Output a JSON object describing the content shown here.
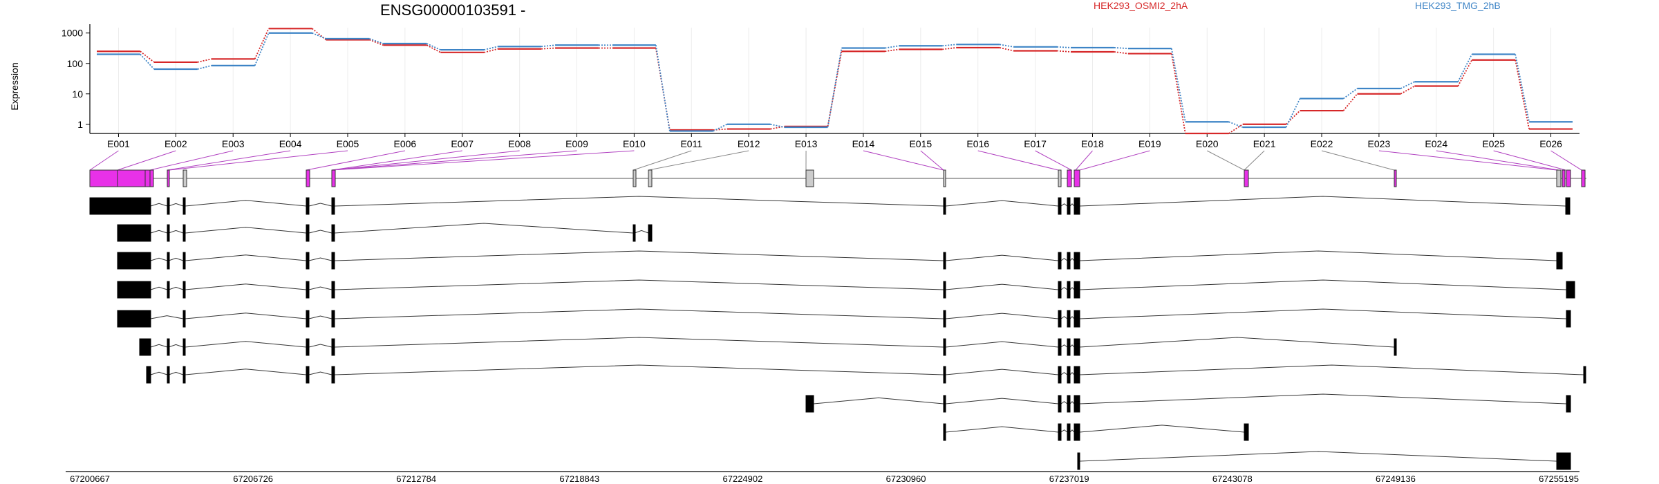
{
  "title": "ENSG00000103591 -",
  "ylabel": "Expression",
  "chart_data": {
    "type": "line",
    "scale": "log",
    "ylim": [
      0.5,
      1500
    ],
    "yticks": [
      "1",
      "10",
      "100",
      "1000"
    ],
    "categories": [
      "E001",
      "E002",
      "E003",
      "E004",
      "E005",
      "E006",
      "E007",
      "E008",
      "E009",
      "E010",
      "E011",
      "E012",
      "E013",
      "E014",
      "E015",
      "E016",
      "E017",
      "E018",
      "E019",
      "E020",
      "E021",
      "E022",
      "E023",
      "E024",
      "E025",
      "E026"
    ],
    "series": [
      {
        "name": "HEK293_OSMI2_2hA",
        "color": "#d62728",
        "values": [
          250,
          110,
          140,
          1400,
          600,
          400,
          230,
          300,
          320,
          320,
          0.65,
          0.7,
          0.85,
          250,
          290,
          330,
          260,
          240,
          210,
          0.5,
          1.0,
          2.8,
          10,
          18,
          130,
          0.7
        ]
      },
      {
        "name": "HEK293_TMG_2hB",
        "color": "#3d84c6",
        "values": [
          200,
          65,
          85,
          1000,
          650,
          450,
          280,
          360,
          400,
          400,
          0.6,
          1.0,
          0.8,
          320,
          380,
          420,
          350,
          330,
          310,
          1.2,
          0.8,
          7,
          15,
          25,
          200,
          1.2
        ]
      }
    ],
    "gene_track": {
      "coordinates": [
        "67200667",
        "67206726",
        "67212784",
        "67218843",
        "67224902",
        "67230960",
        "67237019",
        "67243078",
        "67249136",
        "67255195"
      ]
    }
  }
}
